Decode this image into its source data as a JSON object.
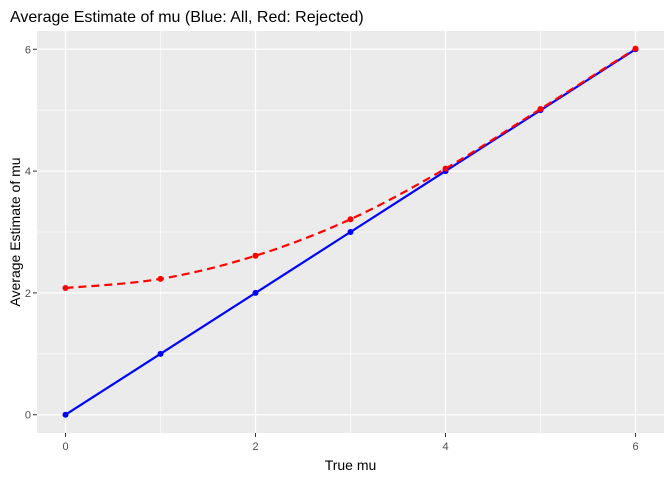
{
  "chart_data": {
    "type": "line",
    "title": "Average Estimate of mu (Blue: All, Red: Rejected)",
    "xlabel": "True mu",
    "ylabel": "Average Estimate of mu",
    "x": [
      0,
      1,
      2,
      3,
      4,
      5,
      6
    ],
    "xlim": [
      -0.3,
      6.3
    ],
    "ylim": [
      -0.3,
      6.3
    ],
    "xticks": [
      0,
      2,
      4,
      6
    ],
    "yticks": [
      0,
      2,
      4,
      6
    ],
    "grid": true,
    "series": [
      {
        "values": [
          0.0,
          1.0,
          2.0,
          3.0,
          4.0,
          5.0,
          6.0
        ],
        "color": "#0000ff",
        "line_style": "solid"
      },
      {
        "values": [
          2.08,
          2.23,
          2.61,
          3.21,
          4.04,
          5.02,
          6.01
        ],
        "color": "#ff0000",
        "line_style": "dashed"
      }
    ],
    "panel_color": "#ebebeb",
    "grid_color": "#ffffff"
  }
}
